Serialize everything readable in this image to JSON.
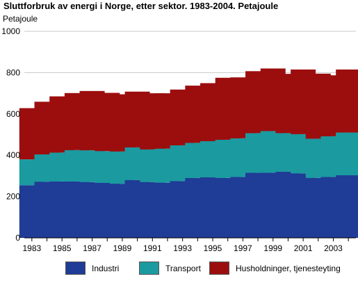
{
  "chart_data": {
    "type": "bar",
    "stacked": true,
    "title": "Sluttforbruk av energi i Norge, etter sektor. 1983-2004. Petajoule",
    "ylabel": "Petajoule",
    "ylim": [
      0,
      1000
    ],
    "yticks": [
      0,
      200,
      400,
      600,
      800,
      1000
    ],
    "grid": true,
    "legend_position": "bottom",
    "categories": [
      "1983",
      "1984",
      "1985",
      "1986",
      "1987",
      "1988",
      "1989",
      "1990",
      "1991",
      "1992",
      "1993",
      "1994",
      "1995",
      "1996",
      "1997",
      "1998",
      "1999",
      "2000",
      "2001",
      "2002",
      "2003",
      "2004"
    ],
    "xtick_labels": [
      "1983",
      "1985",
      "1987",
      "1989",
      "1991",
      "1993",
      "1995",
      "1997",
      "1999",
      "2001",
      "2003"
    ],
    "series": [
      {
        "name": "Industri",
        "color": "#1f3c96",
        "values": [
          255,
          272,
          273,
          273,
          270,
          266,
          262,
          280,
          270,
          267,
          275,
          290,
          293,
          290,
          295,
          315,
          315,
          320,
          312,
          290,
          295,
          303
        ]
      },
      {
        "name": "Transport",
        "color": "#1b9aa0",
        "values": [
          125,
          132,
          140,
          152,
          154,
          154,
          156,
          158,
          158,
          165,
          173,
          170,
          175,
          185,
          187,
          192,
          202,
          187,
          190,
          190,
          197,
          207
        ]
      },
      {
        "name": "Husholdninger, tjenesteyting",
        "color": "#9c0e0e",
        "values": [
          248,
          255,
          272,
          276,
          287,
          282,
          277,
          270,
          272,
          268,
          270,
          277,
          281,
          300,
          295,
          300,
          303,
          287,
          313,
          315,
          295,
          305
        ]
      }
    ]
  }
}
